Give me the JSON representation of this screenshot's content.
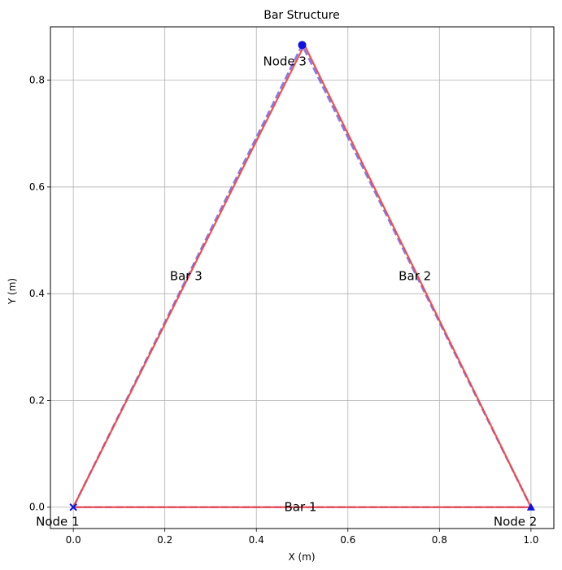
{
  "chart_data": {
    "type": "line",
    "title": "Bar Structure",
    "xlabel": "X (m)",
    "ylabel": "Y (m)",
    "xlim": [
      -0.05,
      1.05
    ],
    "ylim": [
      -0.04,
      0.9
    ],
    "x_ticks": [
      0.0,
      0.2,
      0.4,
      0.6,
      0.8,
      1.0
    ],
    "y_ticks": [
      0.0,
      0.2,
      0.4,
      0.6,
      0.8
    ],
    "x_tick_labels": [
      "0.0",
      "0.2",
      "0.4",
      "0.6",
      "0.8",
      "1.0"
    ],
    "y_tick_labels": [
      "0.0",
      "0.2",
      "0.4",
      "0.6",
      "0.8"
    ],
    "grid": true,
    "nodes": [
      {
        "label": "Node 1",
        "x": 0.0,
        "y": 0.0,
        "marker": "x"
      },
      {
        "label": "Node 2",
        "x": 1.0,
        "y": 0.0,
        "marker": "triangle"
      },
      {
        "label": "Node 3",
        "x": 0.5,
        "y": 0.866,
        "marker": "circle"
      }
    ],
    "bars": [
      {
        "label": "Bar 1",
        "from": 0,
        "to": 1
      },
      {
        "label": "Bar 2",
        "from": 1,
        "to": 2
      },
      {
        "label": "Bar 3",
        "from": 2,
        "to": 0
      }
    ],
    "series": [
      {
        "style": "dashed",
        "color": "#7777ee",
        "points": [
          [
            0.0,
            0.0
          ],
          [
            1.0,
            0.0
          ],
          [
            0.5,
            0.866
          ],
          [
            0.0,
            0.0
          ]
        ]
      },
      {
        "style": "solid",
        "color": "#f04848",
        "points": [
          [
            0.0,
            0.0
          ],
          [
            1.0,
            0.0
          ],
          [
            0.505,
            0.866
          ],
          [
            0.0,
            0.0
          ]
        ]
      }
    ],
    "marker_color": "#1010e0"
  }
}
